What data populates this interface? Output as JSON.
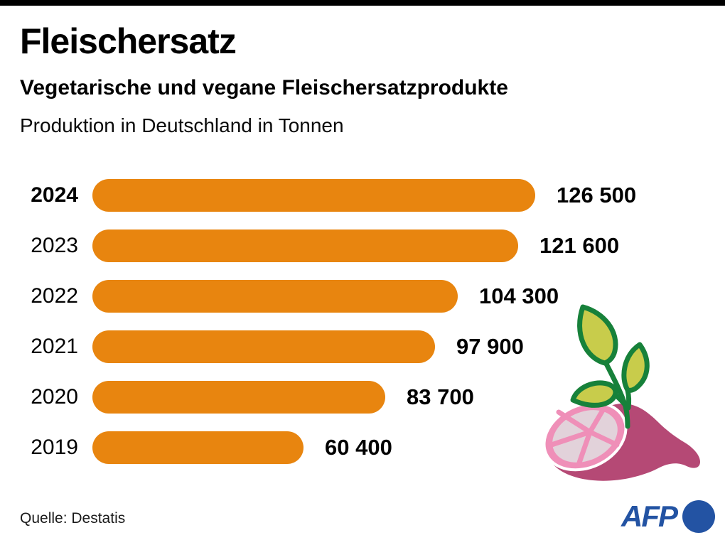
{
  "header": {
    "title": "Fleischersatz",
    "subtitle": "Vegetarische und vegane Fleischersatzprodukte",
    "note": "Produktion in Deutschland in Tonnen"
  },
  "chart_data": {
    "type": "bar",
    "orientation": "horizontal",
    "title": "Fleischersatz",
    "subtitle": "Vegetarische und vegane Fleischersatzprodukte",
    "unit_note": "Produktion in Deutschland in Tonnen",
    "categories": [
      "2024",
      "2023",
      "2022",
      "2021",
      "2020",
      "2019"
    ],
    "values": [
      126500,
      121600,
      104300,
      97900,
      83700,
      60400
    ],
    "value_labels": [
      "126 500",
      "121 600",
      "104 300",
      "97 900",
      "83 700",
      "60 400"
    ],
    "xlim": [
      0,
      126500
    ],
    "grid": false,
    "legend": false,
    "bar_color": "#E8850F",
    "value_label_position": "right-of-bar",
    "source": "Quelle: Destatis"
  },
  "footer": {
    "source": "Quelle: Destatis",
    "logo_text": "AFP"
  },
  "illustration": {
    "name": "ham-with-leaves",
    "description": "Pink ham piece with green plant leaves sprouting from it"
  },
  "colors": {
    "bar_orange": "#E8850F",
    "afp_blue": "#2353A3",
    "leaf_fill": "#C8CC4B",
    "leaf_stroke": "#17813A",
    "ham_body": "#B54975",
    "ham_face": "#EF8FB8",
    "ham_face_inner": "#E2D2DA",
    "top_bar": "#000000"
  }
}
